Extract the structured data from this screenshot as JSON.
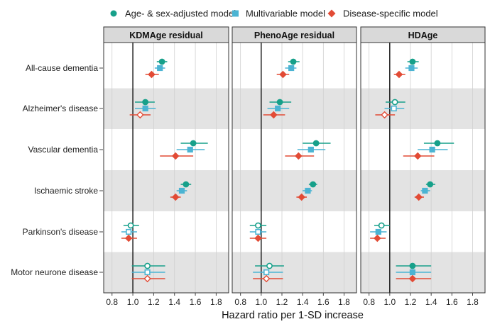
{
  "chart_data": {
    "type": "forest",
    "xlabel": "Hazard ratio per 1-SD increase",
    "reference_line": 1.0,
    "xlim": [
      0.72,
      1.92
    ],
    "xticks": [
      0.8,
      1.0,
      1.2,
      1.4,
      1.6,
      1.8
    ],
    "xtick_labels": [
      "0.8",
      "1.0",
      "1.2",
      "1.4",
      "1.6",
      "1.8"
    ],
    "legend": [
      {
        "name": "Age- & sex-adjusted model",
        "color": "#17A08A",
        "marker": "circle"
      },
      {
        "name": "Multivariable model",
        "color": "#4BB4D3",
        "marker": "square"
      },
      {
        "name": "Disease-specific model",
        "color": "#E24B35",
        "marker": "diamond"
      }
    ],
    "outcomes": [
      "All-cause dementia",
      "Alzheimer's disease",
      "Vascular dementia",
      "Ischaemic stroke",
      "Parkinson's disease",
      "Motor neurone disease"
    ],
    "panels": [
      {
        "title": "KDMAge residual",
        "rows": [
          [
            {
              "hr": 1.28,
              "lo": 1.23,
              "hi": 1.33,
              "open": false
            },
            {
              "hr": 1.26,
              "lo": 1.21,
              "hi": 1.31,
              "open": false
            },
            {
              "hr": 1.18,
              "lo": 1.12,
              "hi": 1.25,
              "open": false
            }
          ],
          [
            {
              "hr": 1.12,
              "lo": 1.02,
              "hi": 1.21,
              "open": false
            },
            {
              "hr": 1.12,
              "lo": 1.02,
              "hi": 1.22,
              "open": false
            },
            {
              "hr": 1.07,
              "lo": 0.97,
              "hi": 1.17,
              "open": true
            }
          ],
          [
            {
              "hr": 1.58,
              "lo": 1.46,
              "hi": 1.72,
              "open": false
            },
            {
              "hr": 1.55,
              "lo": 1.42,
              "hi": 1.69,
              "open": false
            },
            {
              "hr": 1.41,
              "lo": 1.26,
              "hi": 1.58,
              "open": false
            }
          ],
          [
            {
              "hr": 1.51,
              "lo": 1.46,
              "hi": 1.56,
              "open": false
            },
            {
              "hr": 1.47,
              "lo": 1.42,
              "hi": 1.52,
              "open": false
            },
            {
              "hr": 1.41,
              "lo": 1.36,
              "hi": 1.46,
              "open": false
            }
          ],
          [
            {
              "hr": 0.98,
              "lo": 0.91,
              "hi": 1.06,
              "open": true
            },
            {
              "hr": 0.96,
              "lo": 0.89,
              "hi": 1.04,
              "open": true
            },
            {
              "hr": 0.96,
              "lo": 0.89,
              "hi": 1.04,
              "open": false
            }
          ],
          [
            {
              "hr": 1.14,
              "lo": 0.99,
              "hi": 1.31,
              "open": true
            },
            {
              "hr": 1.14,
              "lo": 0.99,
              "hi": 1.31,
              "open": true
            },
            {
              "hr": 1.14,
              "lo": 0.99,
              "hi": 1.31,
              "open": true
            }
          ]
        ]
      },
      {
        "title": "PhenoAge residual",
        "rows": [
          [
            {
              "hr": 1.31,
              "lo": 1.26,
              "hi": 1.37,
              "open": false
            },
            {
              "hr": 1.29,
              "lo": 1.23,
              "hi": 1.34,
              "open": false
            },
            {
              "hr": 1.21,
              "lo": 1.15,
              "hi": 1.27,
              "open": false
            }
          ],
          [
            {
              "hr": 1.18,
              "lo": 1.08,
              "hi": 1.29,
              "open": false
            },
            {
              "hr": 1.16,
              "lo": 1.06,
              "hi": 1.27,
              "open": false
            },
            {
              "hr": 1.12,
              "lo": 1.02,
              "hi": 1.23,
              "open": false
            }
          ],
          [
            {
              "hr": 1.53,
              "lo": 1.4,
              "hi": 1.67,
              "open": false
            },
            {
              "hr": 1.48,
              "lo": 1.35,
              "hi": 1.62,
              "open": false
            },
            {
              "hr": 1.36,
              "lo": 1.23,
              "hi": 1.51,
              "open": false
            }
          ],
          [
            {
              "hr": 1.5,
              "lo": 1.46,
              "hi": 1.54,
              "open": false
            },
            {
              "hr": 1.45,
              "lo": 1.4,
              "hi": 1.49,
              "open": false
            },
            {
              "hr": 1.39,
              "lo": 1.34,
              "hi": 1.44,
              "open": false
            }
          ],
          [
            {
              "hr": 0.97,
              "lo": 0.89,
              "hi": 1.05,
              "open": true
            },
            {
              "hr": 0.97,
              "lo": 0.89,
              "hi": 1.05,
              "open": true
            },
            {
              "hr": 0.97,
              "lo": 0.89,
              "hi": 1.05,
              "open": false
            }
          ],
          [
            {
              "hr": 1.08,
              "lo": 0.94,
              "hi": 1.22,
              "open": true
            },
            {
              "hr": 1.05,
              "lo": 0.92,
              "hi": 1.21,
              "open": true
            },
            {
              "hr": 1.05,
              "lo": 0.92,
              "hi": 1.21,
              "open": true
            }
          ]
        ]
      },
      {
        "title": "HDAge",
        "rows": [
          [
            {
              "hr": 1.22,
              "lo": 1.17,
              "hi": 1.28,
              "open": false
            },
            {
              "hr": 1.21,
              "lo": 1.15,
              "hi": 1.27,
              "open": false
            },
            {
              "hr": 1.09,
              "lo": 1.04,
              "hi": 1.15,
              "open": false
            }
          ],
          [
            {
              "hr": 1.05,
              "lo": 0.96,
              "hi": 1.15,
              "open": true
            },
            {
              "hr": 1.04,
              "lo": 0.95,
              "hi": 1.14,
              "open": true
            },
            {
              "hr": 0.95,
              "lo": 0.86,
              "hi": 1.05,
              "open": true
            }
          ],
          [
            {
              "hr": 1.46,
              "lo": 1.33,
              "hi": 1.62,
              "open": false
            },
            {
              "hr": 1.41,
              "lo": 1.27,
              "hi": 1.56,
              "open": false
            },
            {
              "hr": 1.27,
              "lo": 1.13,
              "hi": 1.43,
              "open": false
            }
          ],
          [
            {
              "hr": 1.39,
              "lo": 1.35,
              "hi": 1.44,
              "open": false
            },
            {
              "hr": 1.34,
              "lo": 1.3,
              "hi": 1.39,
              "open": false
            },
            {
              "hr": 1.28,
              "lo": 1.24,
              "hi": 1.33,
              "open": false
            }
          ],
          [
            {
              "hr": 0.92,
              "lo": 0.85,
              "hi": 1.0,
              "open": true
            },
            {
              "hr": 0.89,
              "lo": 0.81,
              "hi": 0.97,
              "open": false
            },
            {
              "hr": 0.88,
              "lo": 0.81,
              "hi": 0.96,
              "open": false
            }
          ],
          [
            {
              "hr": 1.22,
              "lo": 1.06,
              "hi": 1.4,
              "open": false
            },
            {
              "hr": 1.22,
              "lo": 1.06,
              "hi": 1.4,
              "open": false
            },
            {
              "hr": 1.22,
              "lo": 1.06,
              "hi": 1.4,
              "open": false
            }
          ]
        ]
      }
    ]
  }
}
